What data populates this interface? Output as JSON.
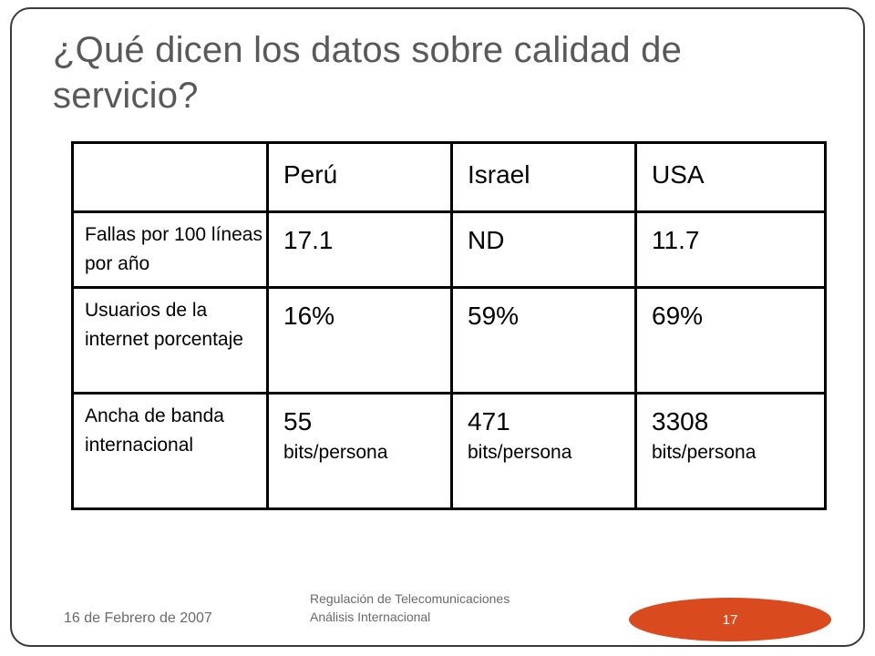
{
  "slide": {
    "title": "¿Qué dicen los datos sobre calidad de servicio?",
    "table": {
      "header": [
        "",
        "Perú",
        "Israel",
        "USA"
      ],
      "rows": [
        {
          "label": "Fallas por 100 líneas por año",
          "cells": [
            {
              "value": "17.1",
              "unit": ""
            },
            {
              "value": "ND",
              "unit": ""
            },
            {
              "value": "11.7",
              "unit": ""
            }
          ]
        },
        {
          "label": "Usuarios de la internet porcentaje",
          "cells": [
            {
              "value": "16%",
              "unit": ""
            },
            {
              "value": "59%",
              "unit": ""
            },
            {
              "value": "69%",
              "unit": ""
            }
          ]
        },
        {
          "label": "Ancha de banda internacional",
          "cells": [
            {
              "value": "55",
              "unit": "bits/persona"
            },
            {
              "value": "471",
              "unit": "bits/persona"
            },
            {
              "value": "3308",
              "unit": "bits/persona"
            }
          ]
        }
      ]
    },
    "footer": {
      "date": "16 de Febrero de 2007",
      "text": "Regulación de Telecomunicaciones Análisis Internacional",
      "page_number": "17",
      "badge_color": "#d94a1e"
    }
  }
}
